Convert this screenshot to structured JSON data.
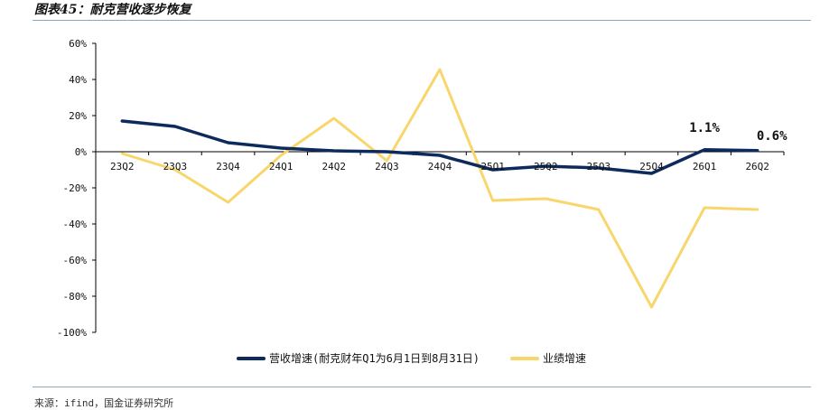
{
  "figure": {
    "title": "图表45：耐克营收逐步恢复",
    "source": "来源：ifind，国金证券研究所"
  },
  "colors": {
    "revenue": "#0d2a5c",
    "earnings": "#f8d66b",
    "axis": "#000000",
    "rule": "#8fa4c4"
  },
  "chart_data": {
    "type": "line",
    "categories": [
      "23Q2",
      "23Q3",
      "23Q4",
      "24Q1",
      "24Q2",
      "24Q3",
      "24Q4",
      "25Q1",
      "25Q2",
      "25Q3",
      "25Q4",
      "26Q1",
      "26Q2"
    ],
    "ylim": [
      -100,
      60
    ],
    "yticks": [
      60,
      40,
      20,
      0,
      -20,
      -40,
      -60,
      -80,
      -100
    ],
    "ytick_labels": [
      "60%",
      "40%",
      "20%",
      "0%",
      "-20%",
      "-40%",
      "-60%",
      "-80%",
      "-100%"
    ],
    "grid": false,
    "legend_position": "bottom",
    "series": [
      {
        "name": "营收增速(耐克财年Q1为6月1日到8月31日)",
        "color": "#0d2a5c",
        "values": [
          17,
          14,
          5,
          2,
          0.5,
          0,
          -2,
          -10,
          -8,
          -9,
          -12,
          1.1,
          0.6
        ]
      },
      {
        "name": "业绩增速",
        "color": "#f8d66b",
        "values": [
          -1,
          -10,
          -28,
          -2,
          18.5,
          -5,
          45.5,
          -27,
          -26,
          -32,
          -86,
          -31,
          -32
        ]
      }
    ],
    "annotations": [
      {
        "category": "26Q1",
        "value": 1.1,
        "text": "1.1%"
      },
      {
        "category": "26Q2",
        "value": 0.6,
        "text": "0.6%"
      }
    ]
  }
}
